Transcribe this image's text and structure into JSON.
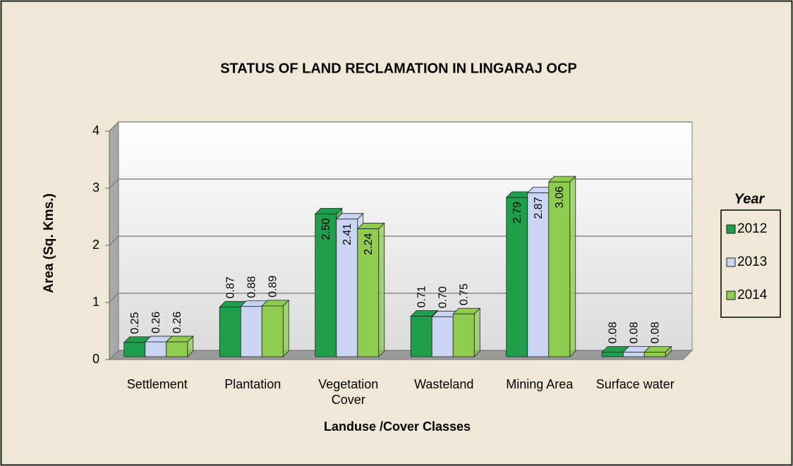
{
  "chart_data": {
    "type": "bar",
    "title": "STATUS OF LAND RECLAMATION  IN LINGARAJ OCP",
    "xlabel": "Landuse /Cover Classes",
    "ylabel": "Area (Sq. Kms.)",
    "legend_title": "Year",
    "legend_position": "right",
    "grid": true,
    "categories": [
      "Settlement",
      "Plantation",
      "Vegetation Cover",
      "Wasteland",
      "Mining Area",
      "Surface water"
    ],
    "series": [
      {
        "name": "2012",
        "color": "#1f9e4c",
        "values": [
          0.25,
          0.87,
          2.5,
          0.71,
          2.79,
          0.08
        ],
        "value_labels": [
          "0.25",
          "0.87",
          "2.50",
          "0.71",
          "2.79",
          "0.08"
        ]
      },
      {
        "name": "2013",
        "color": "#c9d5f2",
        "values": [
          0.26,
          0.88,
          2.41,
          0.7,
          2.87,
          0.08
        ],
        "value_labels": [
          "0.26",
          "0.88",
          "2.41",
          "0.70",
          "2.87",
          "0.08"
        ]
      },
      {
        "name": "2014",
        "color": "#8dcc4f",
        "values": [
          0.26,
          0.89,
          2.24,
          0.75,
          3.06,
          0.08
        ],
        "value_labels": [
          "0.26",
          "0.89",
          "2.24",
          "0.75",
          "3.06",
          "0.08"
        ]
      }
    ],
    "ylim": [
      0,
      4
    ],
    "yticks": [
      0,
      1,
      2,
      3,
      4
    ]
  }
}
